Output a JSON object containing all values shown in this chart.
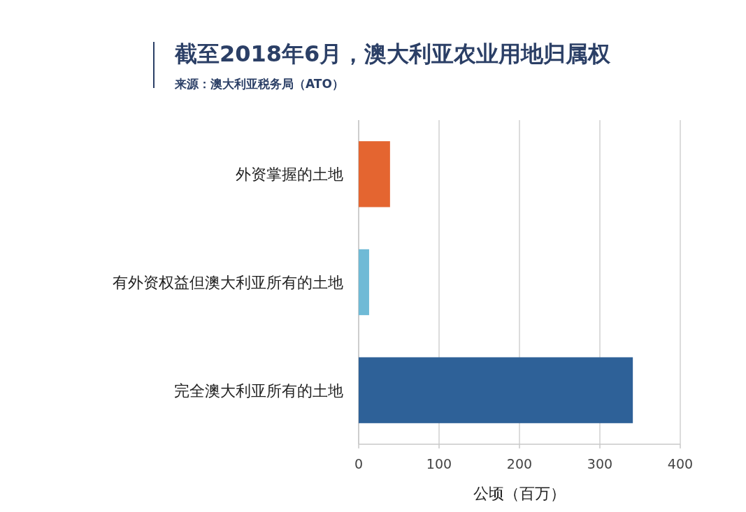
{
  "chart_data": {
    "type": "bar",
    "orientation": "horizontal",
    "title": "截至2018年6月，澳大利亚农业用地归属权",
    "annotations": [
      "来源：澳大利亚税务局（ATO）"
    ],
    "categories": [
      "外资掌握的土地",
      "有外资权益但澳大利亚所有的土地",
      "完全澳大利亚所有的土地"
    ],
    "values": [
      39,
      13,
      341
    ],
    "colors": [
      "#e46530",
      "#6fbad6",
      "#2e6198"
    ],
    "xlabel": "公顷（百万）",
    "xlim": [
      0,
      400
    ],
    "xticks": [
      0,
      100,
      200,
      300,
      400
    ],
    "grid": "x"
  }
}
